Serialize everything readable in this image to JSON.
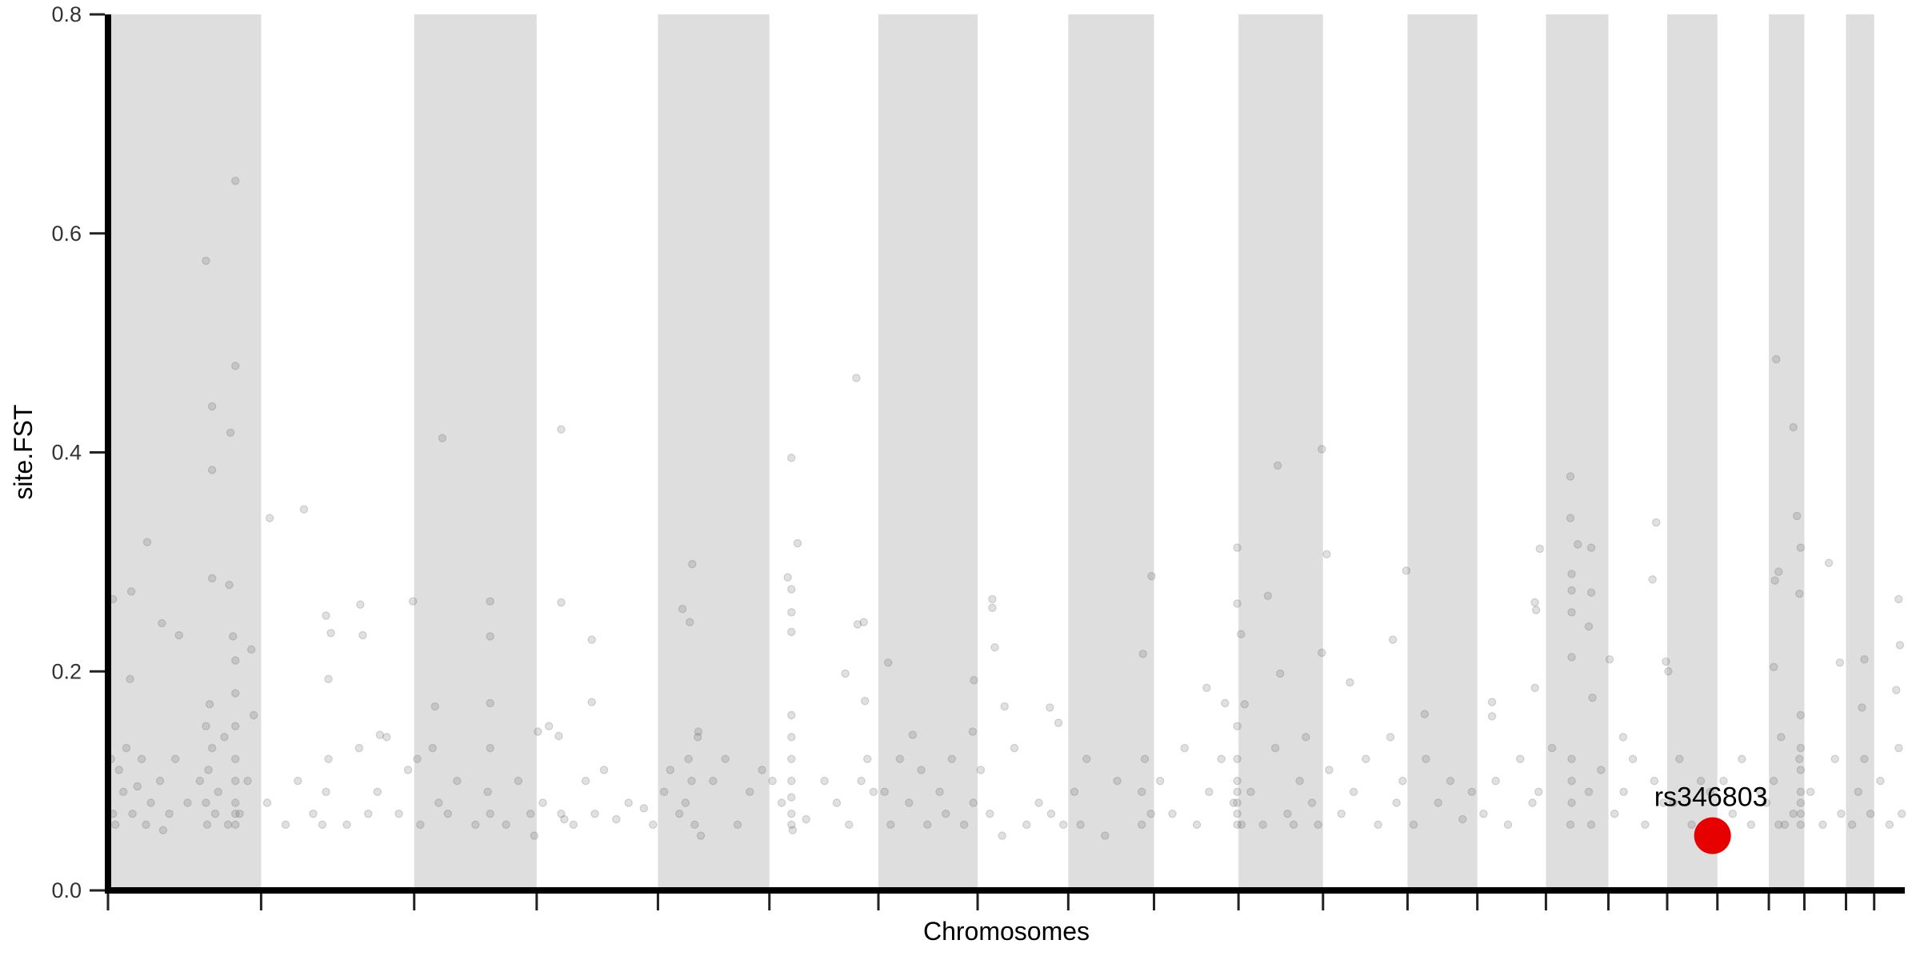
{
  "chart_data": {
    "type": "scatter",
    "title": "",
    "xlabel": "Chromosomes",
    "ylabel": "site.FST",
    "ylim": [
      0,
      0.8
    ],
    "yticks": [
      "0.0",
      "0.2",
      "0.4",
      "0.6",
      "0.8"
    ],
    "ytick_values": [
      0,
      0.2,
      0.4,
      0.6,
      0.8
    ],
    "grid": false,
    "x_tick_labels": false,
    "alternating_band_color": "#dedede",
    "point_color": "#646464",
    "point_opacity": 0.2,
    "highlight_color": "#e60000",
    "chromosome_lengths_mb": [
      250,
      250,
      200,
      198,
      182,
      178,
      162,
      148,
      140,
      138,
      138,
      138,
      114,
      112,
      102,
      96,
      82,
      84,
      58,
      68,
      46,
      50
    ],
    "highlight": {
      "label": "rs346803",
      "chromosome": 17,
      "position_mb": 74,
      "fst": 0.05
    },
    "points_format": [
      "chromosome",
      "position_mb",
      "fst"
    ],
    "points": [
      [
        1,
        160,
        0.575
      ],
      [
        1,
        208,
        0.648
      ],
      [
        1,
        208,
        0.479
      ],
      [
        1,
        170,
        0.442
      ],
      [
        1,
        200,
        0.418
      ],
      [
        1,
        170,
        0.384
      ],
      [
        1,
        64,
        0.318
      ],
      [
        1,
        170,
        0.285
      ],
      [
        1,
        198,
        0.279
      ],
      [
        1,
        36,
        0.193
      ],
      [
        1,
        8,
        0.266
      ],
      [
        1,
        38,
        0.273
      ],
      [
        1,
        88,
        0.244
      ],
      [
        1,
        116,
        0.233
      ],
      [
        1,
        204,
        0.232
      ],
      [
        1,
        234,
        0.22
      ],
      [
        1,
        5,
        0.12
      ],
      [
        1,
        8,
        0.07
      ],
      [
        1,
        12,
        0.06
      ],
      [
        1,
        18,
        0.11
      ],
      [
        1,
        25,
        0.09
      ],
      [
        1,
        30,
        0.13
      ],
      [
        1,
        40,
        0.07
      ],
      [
        1,
        48,
        0.095
      ],
      [
        1,
        55,
        0.12
      ],
      [
        1,
        62,
        0.06
      ],
      [
        1,
        70,
        0.08
      ],
      [
        1,
        85,
        0.1
      ],
      [
        1,
        90,
        0.055
      ],
      [
        1,
        100,
        0.07
      ],
      [
        1,
        110,
        0.12
      ],
      [
        1,
        130,
        0.08
      ],
      [
        1,
        150,
        0.1
      ],
      [
        1,
        160,
        0.15
      ],
      [
        1,
        160,
        0.08
      ],
      [
        1,
        162,
        0.06
      ],
      [
        1,
        164,
        0.11
      ],
      [
        1,
        166,
        0.17
      ],
      [
        1,
        170,
        0.13
      ],
      [
        1,
        175,
        0.07
      ],
      [
        1,
        180,
        0.09
      ],
      [
        1,
        190,
        0.14
      ],
      [
        1,
        196,
        0.06
      ],
      [
        1,
        208,
        0.06
      ],
      [
        1,
        208,
        0.07
      ],
      [
        1,
        208,
        0.08
      ],
      [
        1,
        208,
        0.1
      ],
      [
        1,
        208,
        0.12
      ],
      [
        1,
        208,
        0.15
      ],
      [
        1,
        208,
        0.18
      ],
      [
        1,
        208,
        0.21
      ],
      [
        1,
        215,
        0.07
      ],
      [
        1,
        228,
        0.1
      ],
      [
        1,
        238,
        0.16
      ],
      [
        2,
        14,
        0.34
      ],
      [
        2,
        70,
        0.348
      ],
      [
        2,
        106,
        0.251
      ],
      [
        2,
        110,
        0.193
      ],
      [
        2,
        162,
        0.261
      ],
      [
        2,
        166,
        0.233
      ],
      [
        2,
        114,
        0.235
      ],
      [
        2,
        194,
        0.142
      ],
      [
        2,
        248,
        0.264
      ],
      [
        2,
        10,
        0.08
      ],
      [
        2,
        40,
        0.06
      ],
      [
        2,
        60,
        0.1
      ],
      [
        2,
        85,
        0.07
      ],
      [
        2,
        100,
        0.06
      ],
      [
        2,
        106,
        0.09
      ],
      [
        2,
        110,
        0.12
      ],
      [
        2,
        140,
        0.06
      ],
      [
        2,
        160,
        0.13
      ],
      [
        2,
        175,
        0.07
      ],
      [
        2,
        190,
        0.09
      ],
      [
        2,
        205,
        0.14
      ],
      [
        2,
        225,
        0.07
      ],
      [
        2,
        240,
        0.11
      ],
      [
        3,
        46,
        0.413
      ],
      [
        3,
        124,
        0.264
      ],
      [
        3,
        124,
        0.232
      ],
      [
        3,
        34,
        0.168
      ],
      [
        3,
        124,
        0.171
      ],
      [
        3,
        5,
        0.12
      ],
      [
        3,
        10,
        0.06
      ],
      [
        3,
        30,
        0.13
      ],
      [
        3,
        40,
        0.08
      ],
      [
        3,
        55,
        0.07
      ],
      [
        3,
        70,
        0.1
      ],
      [
        3,
        100,
        0.06
      ],
      [
        3,
        120,
        0.09
      ],
      [
        3,
        124,
        0.07
      ],
      [
        3,
        124,
        0.13
      ],
      [
        3,
        150,
        0.06
      ],
      [
        3,
        170,
        0.1
      ],
      [
        3,
        190,
        0.07
      ],
      [
        3,
        196,
        0.05
      ],
      [
        4,
        2,
        0.145
      ],
      [
        4,
        40,
        0.421
      ],
      [
        4,
        40,
        0.263
      ],
      [
        4,
        90,
        0.229
      ],
      [
        4,
        36,
        0.141
      ],
      [
        4,
        90,
        0.172
      ],
      [
        4,
        10,
        0.08
      ],
      [
        4,
        20,
        0.15
      ],
      [
        4,
        40,
        0.07
      ],
      [
        4,
        45,
        0.065
      ],
      [
        4,
        60,
        0.06
      ],
      [
        4,
        80,
        0.1
      ],
      [
        4,
        95,
        0.07
      ],
      [
        4,
        110,
        0.11
      ],
      [
        4,
        130,
        0.065
      ],
      [
        4,
        150,
        0.08
      ],
      [
        4,
        175,
        0.075
      ],
      [
        4,
        190,
        0.06
      ],
      [
        5,
        56,
        0.298
      ],
      [
        5,
        40,
        0.257
      ],
      [
        5,
        52,
        0.245
      ],
      [
        5,
        66,
        0.145
      ],
      [
        5,
        10,
        0.09
      ],
      [
        5,
        20,
        0.11
      ],
      [
        5,
        35,
        0.07
      ],
      [
        5,
        45,
        0.08
      ],
      [
        5,
        50,
        0.12
      ],
      [
        5,
        55,
        0.1
      ],
      [
        5,
        60,
        0.06
      ],
      [
        5,
        65,
        0.14
      ],
      [
        5,
        70,
        0.05
      ],
      [
        5,
        90,
        0.1
      ],
      [
        5,
        110,
        0.12
      ],
      [
        5,
        130,
        0.06
      ],
      [
        5,
        150,
        0.09
      ],
      [
        5,
        170,
        0.11
      ],
      [
        6,
        36,
        0.395
      ],
      [
        6,
        36,
        0.275
      ],
      [
        6,
        36,
        0.254
      ],
      [
        6,
        36,
        0.236
      ],
      [
        6,
        46,
        0.317
      ],
      [
        6,
        30,
        0.286
      ],
      [
        6,
        142,
        0.468
      ],
      [
        6,
        154,
        0.245
      ],
      [
        6,
        144,
        0.243
      ],
      [
        6,
        156,
        0.173
      ],
      [
        6,
        124,
        0.198
      ],
      [
        6,
        5,
        0.1
      ],
      [
        6,
        20,
        0.08
      ],
      [
        6,
        36,
        0.06
      ],
      [
        6,
        36,
        0.07
      ],
      [
        6,
        36,
        0.085
      ],
      [
        6,
        36,
        0.1
      ],
      [
        6,
        36,
        0.12
      ],
      [
        6,
        36,
        0.14
      ],
      [
        6,
        36,
        0.16
      ],
      [
        6,
        38,
        0.055
      ],
      [
        6,
        60,
        0.065
      ],
      [
        6,
        90,
        0.1
      ],
      [
        6,
        110,
        0.08
      ],
      [
        6,
        130,
        0.06
      ],
      [
        6,
        150,
        0.1
      ],
      [
        6,
        160,
        0.12
      ],
      [
        6,
        170,
        0.09
      ],
      [
        7,
        16,
        0.208
      ],
      [
        7,
        56,
        0.142
      ],
      [
        7,
        154,
        0.145
      ],
      [
        7,
        156,
        0.192
      ],
      [
        7,
        10,
        0.09
      ],
      [
        7,
        20,
        0.06
      ],
      [
        7,
        35,
        0.12
      ],
      [
        7,
        50,
        0.08
      ],
      [
        7,
        70,
        0.11
      ],
      [
        7,
        80,
        0.06
      ],
      [
        7,
        100,
        0.09
      ],
      [
        7,
        110,
        0.07
      ],
      [
        7,
        120,
        0.12
      ],
      [
        7,
        140,
        0.06
      ],
      [
        7,
        155,
        0.08
      ],
      [
        8,
        24,
        0.266
      ],
      [
        8,
        24,
        0.258
      ],
      [
        8,
        28,
        0.222
      ],
      [
        8,
        118,
        0.167
      ],
      [
        8,
        132,
        0.153
      ],
      [
        8,
        44,
        0.168
      ],
      [
        8,
        5,
        0.11
      ],
      [
        8,
        20,
        0.07
      ],
      [
        8,
        40,
        0.05
      ],
      [
        8,
        60,
        0.13
      ],
      [
        8,
        80,
        0.06
      ],
      [
        8,
        100,
        0.08
      ],
      [
        8,
        120,
        0.07
      ],
      [
        8,
        140,
        0.06
      ],
      [
        9,
        136,
        0.287
      ],
      [
        9,
        122,
        0.216
      ],
      [
        9,
        10,
        0.09
      ],
      [
        9,
        20,
        0.06
      ],
      [
        9,
        30,
        0.12
      ],
      [
        9,
        60,
        0.05
      ],
      [
        9,
        80,
        0.1
      ],
      [
        9,
        120,
        0.06
      ],
      [
        9,
        120,
        0.09
      ],
      [
        9,
        125,
        0.12
      ],
      [
        9,
        135,
        0.07
      ],
      [
        10,
        136,
        0.313
      ],
      [
        10,
        136,
        0.262
      ],
      [
        10,
        86,
        0.185
      ],
      [
        10,
        116,
        0.171
      ],
      [
        10,
        10,
        0.1
      ],
      [
        10,
        30,
        0.07
      ],
      [
        10,
        50,
        0.13
      ],
      [
        10,
        70,
        0.06
      ],
      [
        10,
        90,
        0.09
      ],
      [
        10,
        110,
        0.12
      ],
      [
        10,
        130,
        0.08
      ],
      [
        10,
        136,
        0.06
      ],
      [
        10,
        136,
        0.07
      ],
      [
        10,
        136,
        0.08
      ],
      [
        10,
        136,
        0.09
      ],
      [
        10,
        136,
        0.1
      ],
      [
        10,
        136,
        0.12
      ],
      [
        10,
        136,
        0.15
      ],
      [
        11,
        4,
        0.234
      ],
      [
        11,
        48,
        0.269
      ],
      [
        11,
        64,
        0.388
      ],
      [
        11,
        136,
        0.403
      ],
      [
        11,
        136,
        0.217
      ],
      [
        11,
        68,
        0.198
      ],
      [
        11,
        5,
        0.06
      ],
      [
        11,
        10,
        0.17
      ],
      [
        11,
        20,
        0.09
      ],
      [
        11,
        40,
        0.06
      ],
      [
        11,
        60,
        0.13
      ],
      [
        11,
        80,
        0.07
      ],
      [
        11,
        90,
        0.06
      ],
      [
        11,
        100,
        0.1
      ],
      [
        11,
        110,
        0.14
      ],
      [
        11,
        120,
        0.08
      ],
      [
        11,
        130,
        0.06
      ],
      [
        12,
        6,
        0.307
      ],
      [
        12,
        44,
        0.19
      ],
      [
        12,
        136,
        0.292
      ],
      [
        12,
        114,
        0.229
      ],
      [
        12,
        10,
        0.11
      ],
      [
        12,
        30,
        0.07
      ],
      [
        12,
        50,
        0.09
      ],
      [
        12,
        70,
        0.12
      ],
      [
        12,
        90,
        0.06
      ],
      [
        12,
        110,
        0.14
      ],
      [
        12,
        120,
        0.08
      ],
      [
        12,
        130,
        0.1
      ],
      [
        13,
        28,
        0.161
      ],
      [
        13,
        10,
        0.06
      ],
      [
        13,
        30,
        0.12
      ],
      [
        13,
        50,
        0.08
      ],
      [
        13,
        70,
        0.1
      ],
      [
        13,
        90,
        0.065
      ],
      [
        13,
        105,
        0.09
      ],
      [
        14,
        24,
        0.172
      ],
      [
        14,
        24,
        0.159
      ],
      [
        14,
        94,
        0.263
      ],
      [
        14,
        96,
        0.256
      ],
      [
        14,
        102,
        0.312
      ],
      [
        14,
        94,
        0.185
      ],
      [
        14,
        10,
        0.07
      ],
      [
        14,
        30,
        0.1
      ],
      [
        14,
        50,
        0.06
      ],
      [
        14,
        70,
        0.12
      ],
      [
        14,
        90,
        0.08
      ],
      [
        14,
        100,
        0.09
      ],
      [
        15,
        40,
        0.378
      ],
      [
        15,
        40,
        0.34
      ],
      [
        15,
        42,
        0.289
      ],
      [
        15,
        42,
        0.274
      ],
      [
        15,
        42,
        0.254
      ],
      [
        15,
        42,
        0.213
      ],
      [
        15,
        74,
        0.313
      ],
      [
        15,
        74,
        0.272
      ],
      [
        15,
        70,
        0.241
      ],
      [
        15,
        76,
        0.176
      ],
      [
        15,
        52,
        0.316
      ],
      [
        15,
        10,
        0.13
      ],
      [
        15,
        40,
        0.06
      ],
      [
        15,
        42,
        0.08
      ],
      [
        15,
        42,
        0.1
      ],
      [
        15,
        42,
        0.12
      ],
      [
        15,
        70,
        0.09
      ],
      [
        15,
        74,
        0.06
      ],
      [
        15,
        90,
        0.11
      ],
      [
        16,
        2,
        0.211
      ],
      [
        16,
        24,
        0.14
      ],
      [
        16,
        78,
        0.336
      ],
      [
        16,
        72,
        0.284
      ],
      [
        16,
        94,
        0.209
      ],
      [
        16,
        10,
        0.07
      ],
      [
        16,
        25,
        0.09
      ],
      [
        16,
        40,
        0.12
      ],
      [
        16,
        60,
        0.06
      ],
      [
        16,
        75,
        0.1
      ],
      [
        16,
        90,
        0.08
      ],
      [
        17,
        2,
        0.2
      ],
      [
        17,
        10,
        0.08
      ],
      [
        17,
        20,
        0.12
      ],
      [
        17,
        40,
        0.06
      ],
      [
        17,
        55,
        0.1
      ],
      [
        17,
        70,
        0.09
      ],
      [
        17,
        78,
        0.06
      ],
      [
        18,
        10,
        0.1
      ],
      [
        18,
        25,
        0.07
      ],
      [
        18,
        40,
        0.12
      ],
      [
        18,
        55,
        0.06
      ],
      [
        18,
        70,
        0.09
      ],
      [
        18,
        80,
        0.08
      ],
      [
        19,
        12,
        0.485
      ],
      [
        19,
        40,
        0.423
      ],
      [
        19,
        46,
        0.342
      ],
      [
        19,
        52,
        0.313
      ],
      [
        19,
        50,
        0.271
      ],
      [
        19,
        16,
        0.291
      ],
      [
        19,
        10,
        0.283
      ],
      [
        19,
        8,
        0.204
      ],
      [
        19,
        8,
        0.1
      ],
      [
        19,
        16,
        0.06
      ],
      [
        19,
        20,
        0.14
      ],
      [
        19,
        52,
        0.06
      ],
      [
        19,
        52,
        0.07
      ],
      [
        19,
        52,
        0.08
      ],
      [
        19,
        52,
        0.09
      ],
      [
        19,
        52,
        0.11
      ],
      [
        19,
        52,
        0.13
      ],
      [
        19,
        52,
        0.16
      ],
      [
        19,
        40,
        0.07
      ],
      [
        19,
        50,
        0.12
      ],
      [
        19,
        26,
        0.06
      ],
      [
        20,
        40,
        0.299
      ],
      [
        20,
        58,
        0.208
      ],
      [
        20,
        10,
        0.09
      ],
      [
        20,
        30,
        0.06
      ],
      [
        20,
        50,
        0.12
      ],
      [
        20,
        60,
        0.07
      ],
      [
        21,
        30,
        0.211
      ],
      [
        21,
        26,
        0.167
      ],
      [
        21,
        10,
        0.06
      ],
      [
        21,
        20,
        0.09
      ],
      [
        21,
        30,
        0.12
      ],
      [
        21,
        40,
        0.07
      ],
      [
        22,
        40,
        0.266
      ],
      [
        22,
        42,
        0.224
      ],
      [
        22,
        36,
        0.183
      ],
      [
        22,
        10,
        0.1
      ],
      [
        22,
        25,
        0.06
      ],
      [
        22,
        40,
        0.13
      ],
      [
        22,
        45,
        0.07
      ]
    ]
  }
}
